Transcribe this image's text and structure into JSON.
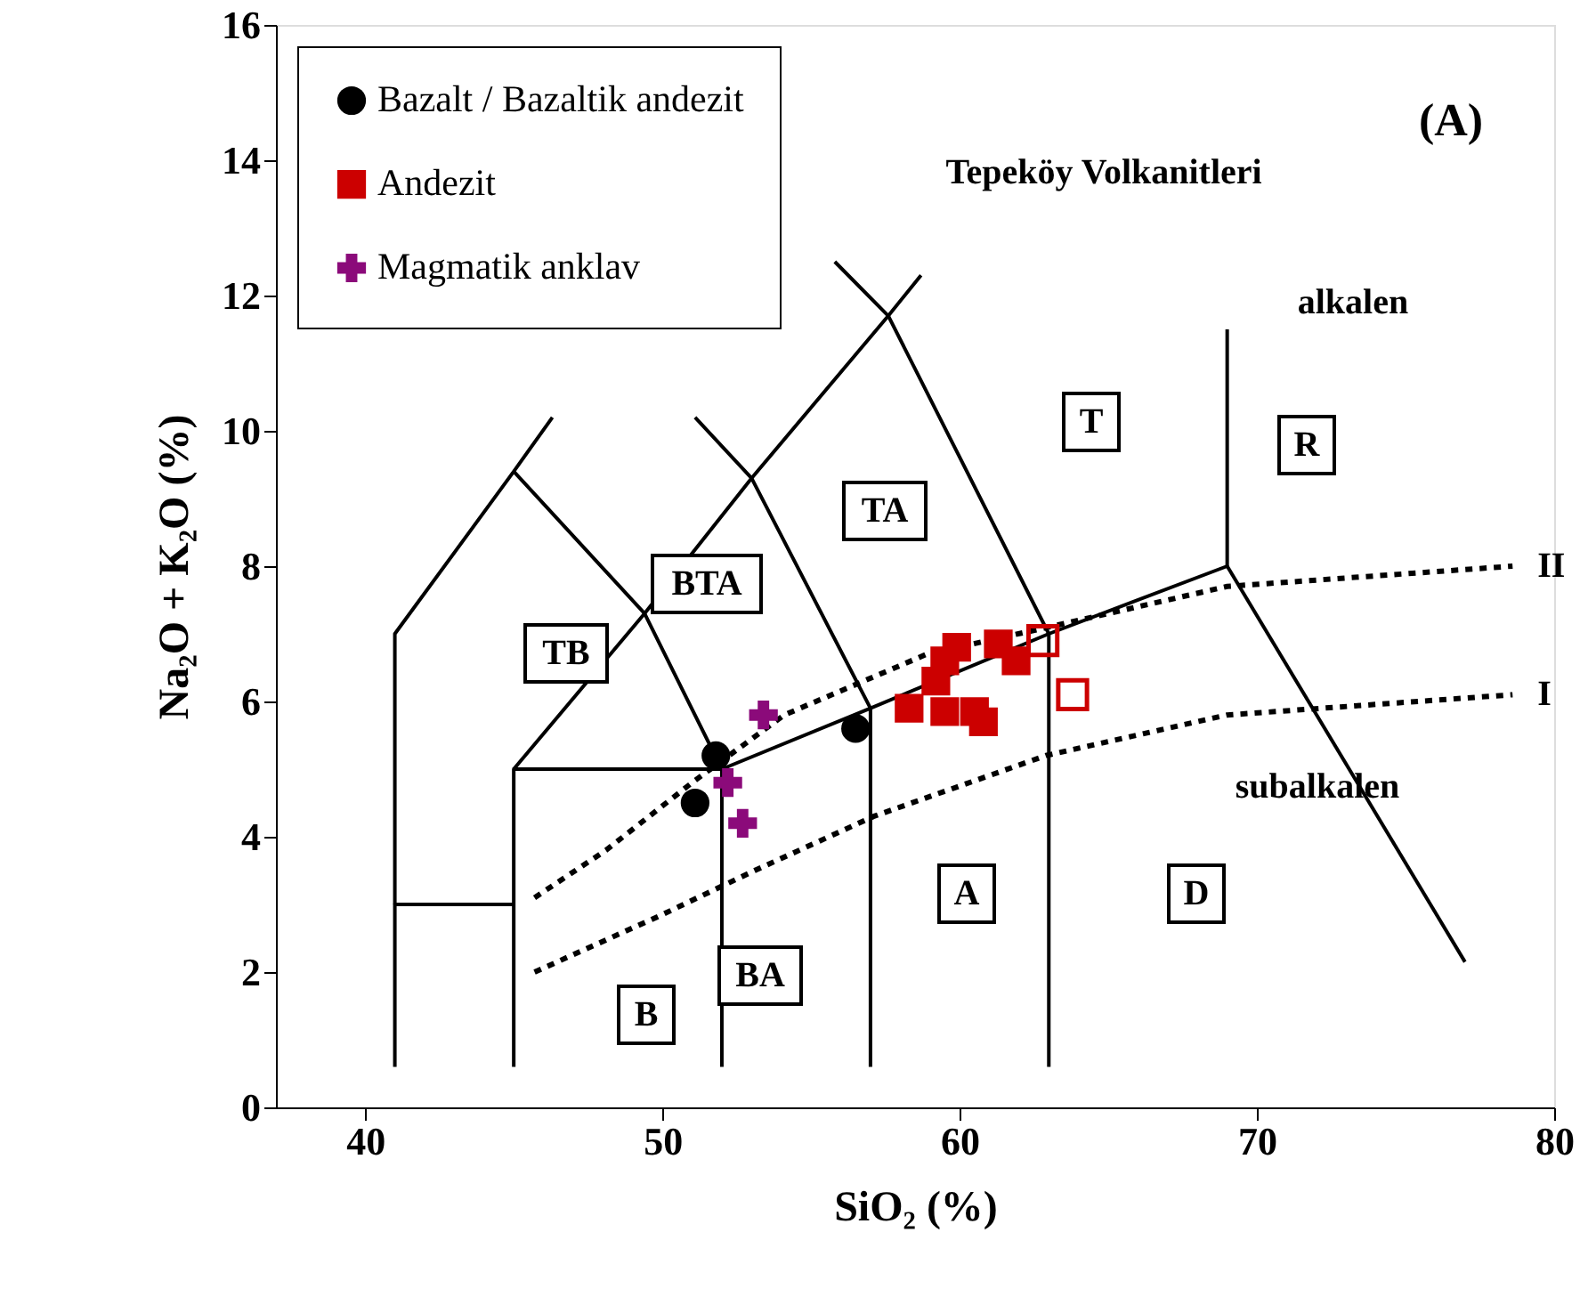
{
  "chart_data": {
    "type": "scatter",
    "xlabel": "SiO₂ (%)",
    "ylabel": "Na₂O + K₂O (%)",
    "xlim": [
      37,
      80
    ],
    "ylim": [
      0,
      16
    ],
    "xticks": [
      40,
      50,
      60,
      70,
      80
    ],
    "yticks": [
      0,
      2,
      4,
      6,
      8,
      10,
      12,
      14,
      16
    ],
    "grid": false,
    "legend": "top left",
    "series": [
      {
        "type": "line",
        "color": "#000000",
        "x": [
          41,
          41,
          45
        ],
        "values": [
          0.6,
          3,
          3
        ]
      },
      {
        "type": "line",
        "color": "#000000",
        "x": [
          41,
          41,
          45,
          46.3
        ],
        "values": [
          3,
          7,
          9.4,
          10.2
        ]
      },
      {
        "type": "line",
        "color": "#000000",
        "x": [
          45,
          45,
          52
        ],
        "values": [
          0.6,
          5,
          5
        ]
      },
      {
        "type": "line",
        "color": "#000000",
        "x": [
          52,
          52,
          57,
          63,
          69
        ],
        "values": [
          0.6,
          5,
          5.9,
          7,
          8
        ]
      },
      {
        "type": "line",
        "color": "#000000",
        "x": [
          57,
          57
        ],
        "values": [
          0.6,
          5.9
        ]
      },
      {
        "type": "line",
        "color": "#000000",
        "x": [
          63,
          63
        ],
        "values": [
          0.6,
          7
        ]
      },
      {
        "type": "line",
        "color": "#000000",
        "x": [
          45,
          49.4,
          53,
          57.6,
          58.7
        ],
        "values": [
          5,
          7.3,
          9.3,
          11.7,
          12.3
        ]
      },
      {
        "type": "line",
        "color": "#000000",
        "x": [
          45,
          49.4,
          52
        ],
        "values": [
          9.4,
          7.3,
          5
        ]
      },
      {
        "type": "line",
        "color": "#000000",
        "x": [
          51.1,
          53,
          57
        ],
        "values": [
          10.2,
          9.3,
          5.9
        ]
      },
      {
        "type": "line",
        "color": "#000000",
        "x": [
          55.8,
          57.6,
          63
        ],
        "values": [
          12.5,
          11.7,
          7
        ]
      },
      {
        "type": "line",
        "color": "#000000",
        "x": [
          69,
          69
        ],
        "values": [
          8,
          11.5
        ]
      },
      {
        "type": "line",
        "color": "#000000",
        "x": [
          69,
          77
        ],
        "values": [
          8,
          2.15
        ]
      },
      {
        "type": "line",
        "name": "II",
        "color": "#000000",
        "line_style": "dotted",
        "x": [
          45.7,
          48.1,
          51,
          54.1,
          58.9,
          63,
          69,
          78.6
        ],
        "values": [
          3.1,
          3.8,
          4.8,
          5.8,
          6.7,
          7.1,
          7.7,
          8.0
        ]
      },
      {
        "type": "line",
        "name": "I",
        "color": "#000000",
        "line_style": "dotted",
        "x": [
          45.7,
          50,
          53.1,
          57.1,
          62.9,
          69,
          78.6
        ],
        "values": [
          2.0,
          2.85,
          3.5,
          4.3,
          5.2,
          5.8,
          6.1
        ]
      },
      {
        "name": "Bazalt / Bazaltik andezit",
        "color": "#000000",
        "marker": "circle",
        "x": [
          51.1,
          51.8,
          56.5
        ],
        "values": [
          4.5,
          5.2,
          5.6
        ]
      },
      {
        "name": "Andezit",
        "color": "#cc0000",
        "marker": "square",
        "x": [
          58.3,
          59.2,
          59.5,
          59.9,
          61.3,
          61.9,
          59.5,
          60.5,
          60.8
        ],
        "values": [
          5.9,
          6.3,
          6.6,
          6.8,
          6.85,
          6.6,
          5.85,
          5.85,
          5.7
        ]
      },
      {
        "color": "#cc0000",
        "marker": "square",
        "x": [
          62.8,
          63.8
        ],
        "values": [
          6.9,
          6.1
        ]
      },
      {
        "name": "Magmatik anklav",
        "color": "#8b0a7a",
        "marker": "cross",
        "x": [
          53.4,
          52.2,
          52.7
        ],
        "values": [
          5.8,
          4.8,
          4.2
        ]
      }
    ],
    "annotations": [
      "(A)",
      "Tepeköy Volkanitleri",
      "alkalen",
      "subalkalen",
      "B",
      "BA",
      "A",
      "D",
      "TB",
      "BTA",
      "TA",
      "T",
      "R"
    ]
  }
}
